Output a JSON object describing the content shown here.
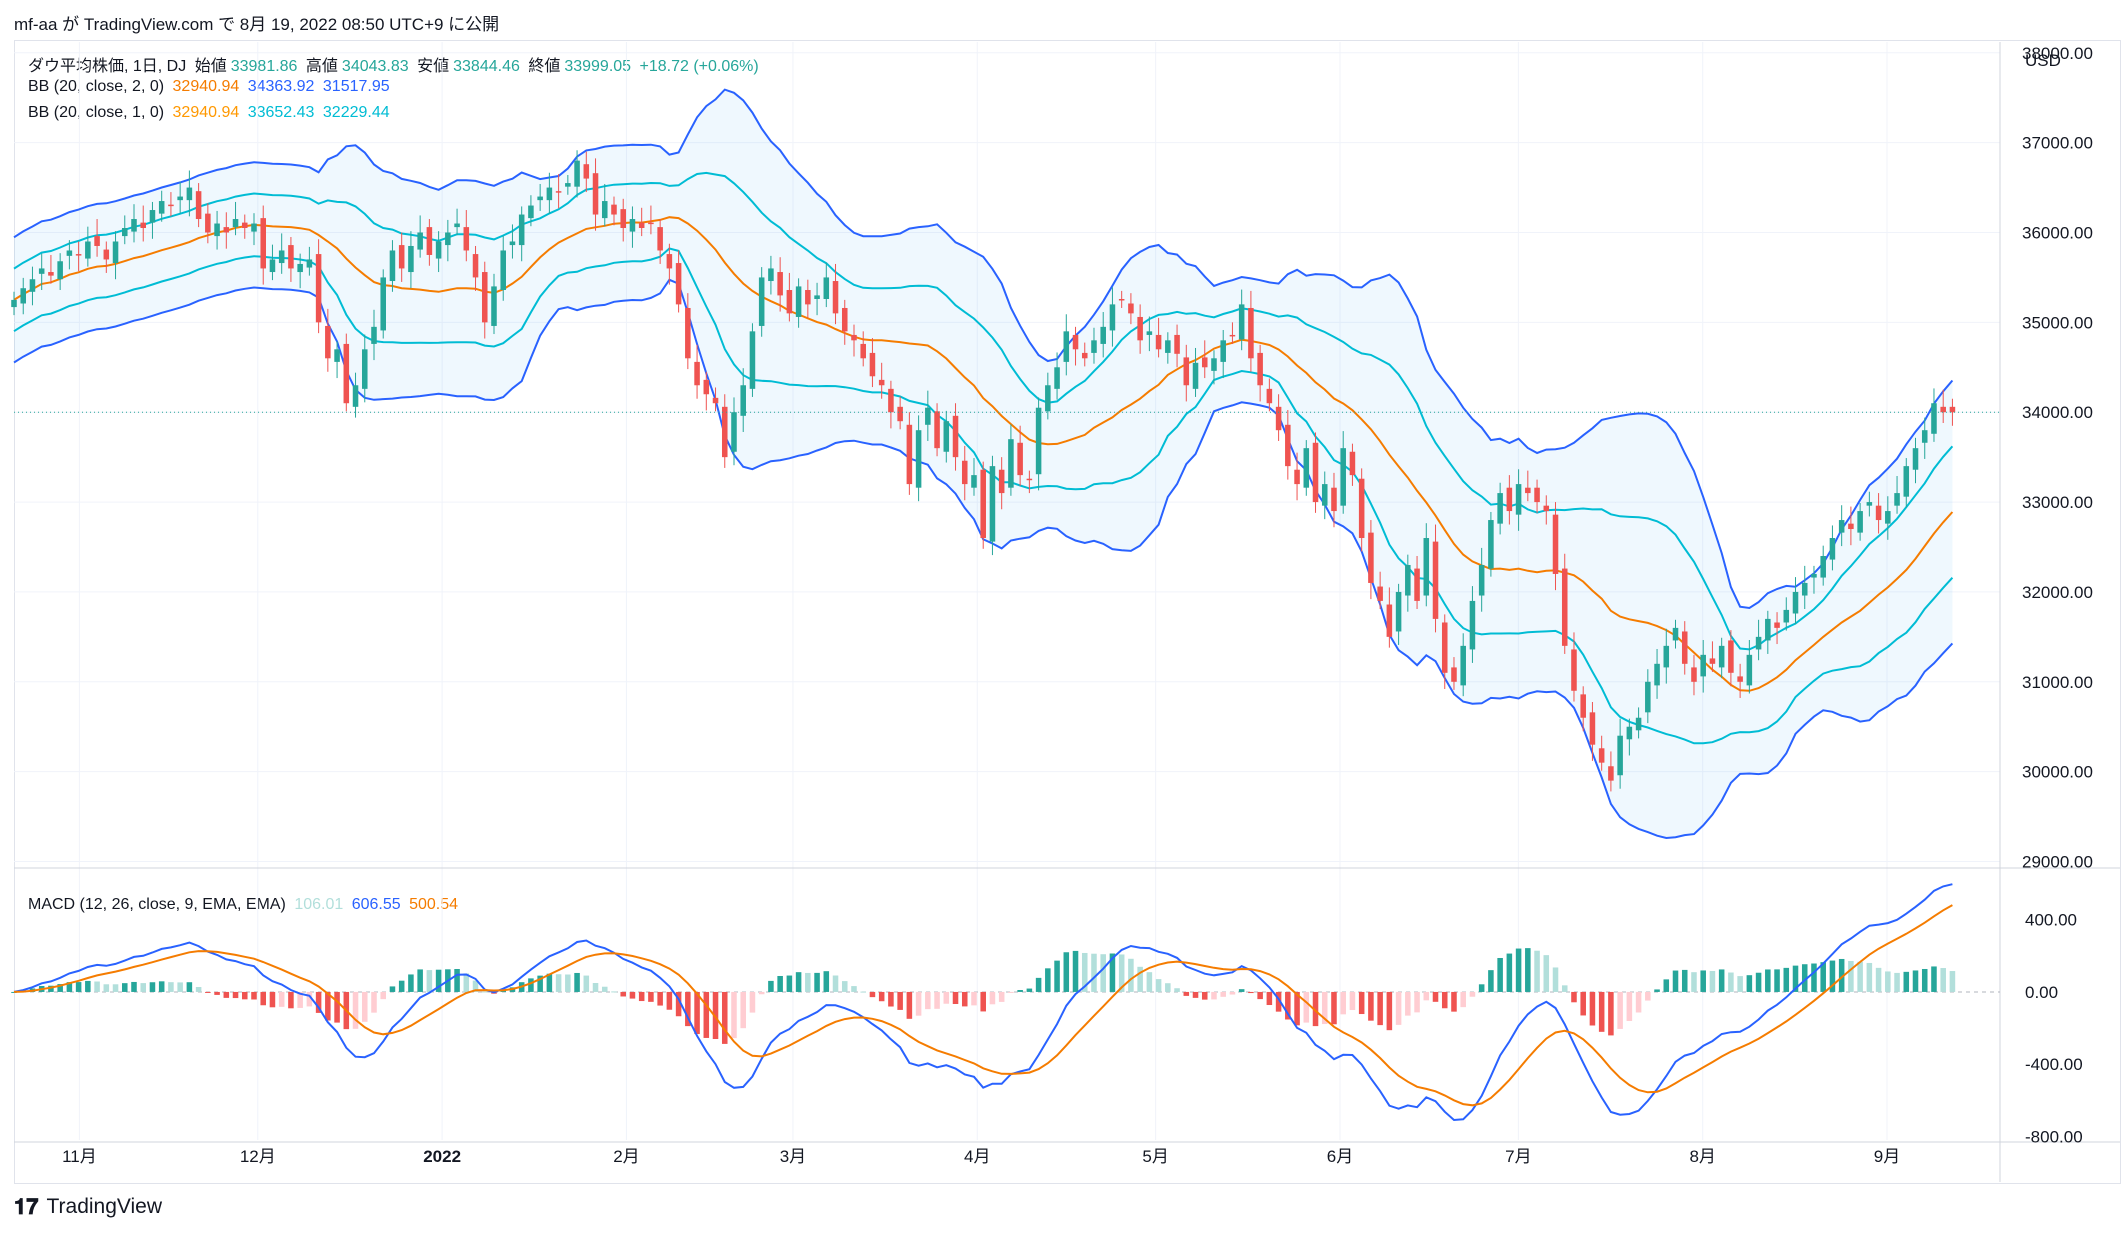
{
  "header": {
    "published_by": "mf-aa が TradingView.com で 8月 19, 2022 08:50 UTC+9 に公開"
  },
  "footer": {
    "brand": "TradingView"
  },
  "chart_data": [
    {
      "type": "candlestick",
      "symbol_line": {
        "name": "ダウ平均株価, 1日, DJ",
        "open_label": "始値",
        "open": "33981.86",
        "high_label": "高値",
        "high": "34043.83",
        "low_label": "安値",
        "low": "33844.46",
        "close_label": "終値",
        "close": "33999.05",
        "change": "+18.72 (+0.06%)"
      },
      "indicators": [
        {
          "label": "BB (20, close, 2, 0)",
          "basis": "32940.94",
          "upper": "34363.92",
          "lower": "31517.95"
        },
        {
          "label": "BB (20, close, 1, 0)",
          "basis": "32940.94",
          "upper": "33652.43",
          "lower": "32229.44"
        }
      ],
      "currency": "USD",
      "y_ticks": [
        "38000.00",
        "37000.00",
        "36000.00",
        "35000.00",
        "34000.00",
        "33000.00",
        "32000.00",
        "31000.00",
        "30000.00",
        "29000.00"
      ],
      "ylim": [
        28950,
        38120
      ],
      "last_price": 33999.05,
      "x_ticks": [
        "11月",
        "12月",
        "2022",
        "2月",
        "3月",
        "4月",
        "5月",
        "6月",
        "7月",
        "8月",
        "9月"
      ],
      "x_tick_days": [
        11,
        41,
        72,
        103,
        131,
        162,
        192,
        223,
        253,
        284,
        315
      ],
      "x_range_days": [
        0,
        334
      ],
      "closes": [
        35250,
        35380,
        35480,
        35600,
        35520,
        35680,
        35800,
        35750,
        35900,
        35850,
        35700,
        35900,
        36050,
        36150,
        36050,
        36250,
        36350,
        36300,
        36400,
        36500,
        36150,
        36000,
        36100,
        36000,
        36150,
        36050,
        36100,
        35600,
        35700,
        35800,
        35600,
        35650,
        35700,
        35000,
        34600,
        34700,
        34100,
        34300,
        34700,
        34950,
        35500,
        35800,
        35600,
        35850,
        36000,
        35750,
        35900,
        36000,
        36100,
        35800,
        35500,
        35000,
        35400,
        35800,
        35900,
        36200,
        36300,
        36400,
        36500,
        36450,
        36550,
        36800,
        36600,
        36200,
        36350,
        36200,
        36050,
        36150,
        36050,
        36100,
        35800,
        35600,
        35200,
        34600,
        34300,
        34200,
        34100,
        33500,
        34000,
        34300,
        34900,
        35500,
        35600,
        35300,
        35100,
        35400,
        35200,
        35300,
        35500,
        35100,
        34900,
        34800,
        34600,
        34400,
        34300,
        34000,
        33900,
        33200,
        33800,
        34050,
        33600,
        33900,
        33500,
        33200,
        33300,
        32600,
        33400,
        33100,
        33700,
        33300,
        33250,
        34050,
        34300,
        34500,
        34900,
        34700,
        34600,
        34800,
        34950,
        35200,
        35250,
        35100,
        34800,
        34900,
        34700,
        34800,
        34650,
        34300,
        34550,
        34500,
        34600,
        34800,
        34850,
        35200,
        34600,
        34300,
        34100,
        33800,
        33400,
        33200,
        33600,
        33000,
        33200,
        32900,
        33600,
        33300,
        32600,
        32100,
        31900,
        31500,
        32000,
        32300,
        31900,
        32600,
        31700,
        31100,
        31000,
        31400,
        31900,
        32300,
        32800,
        33100,
        32900,
        33200,
        33100,
        33000,
        32900,
        32200,
        31400,
        30900,
        30600,
        30300,
        30100,
        29900,
        30400,
        30500,
        30600,
        31000,
        31200,
        31400,
        31600,
        31200,
        31000,
        31300,
        31200,
        31400,
        31100,
        31000,
        31300,
        31500,
        31700,
        31600,
        31800,
        32000,
        32100,
        32200,
        32400,
        32600,
        32800,
        32700,
        32900,
        33000,
        32800,
        32900,
        33100,
        33400,
        33600,
        33800,
        34100,
        34000,
        33999
      ],
      "macd_line": "106.01",
      "macd_signal": "606.55",
      "macd_hist": "500.54",
      "macd_label": "MACD (12, 26, close, 9, EMA, EMA)",
      "macd_ticks": [
        "400.00",
        "0.00",
        "-400.00",
        "-800.00"
      ],
      "macd_ylim": [
        -820,
        620
      ]
    }
  ],
  "colors": {
    "up": "#26a69a",
    "down": "#ef5350",
    "bb2_basis": "#f57c00",
    "bb2_band": "#2962ff",
    "bb1_basis": "#ff9800",
    "bb1_band": "#00bcd4",
    "macd": "#2962ff",
    "signal": "#f57c00",
    "hist_up": "#26a69a",
    "hist_up_light": "#b2dfdb",
    "hist_down": "#ef5350",
    "hist_down_light": "#ffcdd2"
  }
}
